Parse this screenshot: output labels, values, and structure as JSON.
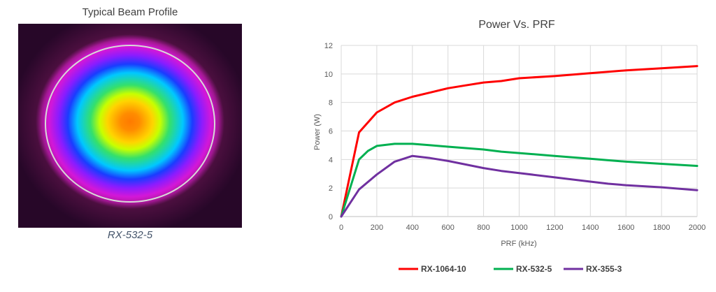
{
  "beam_profile": {
    "title": "Typical Beam Profile",
    "caption": "RX-532-5"
  },
  "chart_data": {
    "type": "line",
    "title": "Power Vs. PRF",
    "xlabel": "PRF (kHz)",
    "ylabel": "Power (W)",
    "xlim": [
      0,
      2000
    ],
    "ylim": [
      0,
      12
    ],
    "xticks": [
      0,
      200,
      400,
      600,
      800,
      1000,
      1200,
      1400,
      1600,
      1800,
      2000
    ],
    "yticks": [
      0,
      2,
      4,
      6,
      8,
      10,
      12
    ],
    "grid": true,
    "legend_position": "bottom",
    "series": [
      {
        "name": "RX-1064-10",
        "color": "#ff0000",
        "x": [
          0,
          100,
          200,
          300,
          400,
          500,
          600,
          700,
          800,
          900,
          1000,
          1200,
          1400,
          1500,
          1600,
          1800,
          2000
        ],
        "y": [
          0,
          5.9,
          7.3,
          8.0,
          8.4,
          8.7,
          9.0,
          9.2,
          9.4,
          9.5,
          9.7,
          9.85,
          10.05,
          10.15,
          10.25,
          10.4,
          10.55
        ]
      },
      {
        "name": "RX-532-5",
        "color": "#00b050",
        "x": [
          0,
          100,
          150,
          200,
          300,
          400,
          500,
          600,
          800,
          900,
          1000,
          1200,
          1400,
          1500,
          1600,
          1800,
          2000
        ],
        "y": [
          0,
          4.0,
          4.6,
          4.95,
          5.1,
          5.1,
          5.0,
          4.9,
          4.7,
          4.55,
          4.45,
          4.25,
          4.05,
          3.95,
          3.85,
          3.7,
          3.55
        ]
      },
      {
        "name": "RX-355-3",
        "color": "#7030a0",
        "x": [
          0,
          100,
          200,
          300,
          400,
          500,
          600,
          800,
          900,
          1000,
          1200,
          1400,
          1500,
          1600,
          1800,
          2000
        ],
        "y": [
          0,
          1.9,
          2.95,
          3.85,
          4.25,
          4.1,
          3.9,
          3.4,
          3.2,
          3.05,
          2.75,
          2.45,
          2.3,
          2.2,
          2.05,
          1.85
        ]
      }
    ]
  }
}
